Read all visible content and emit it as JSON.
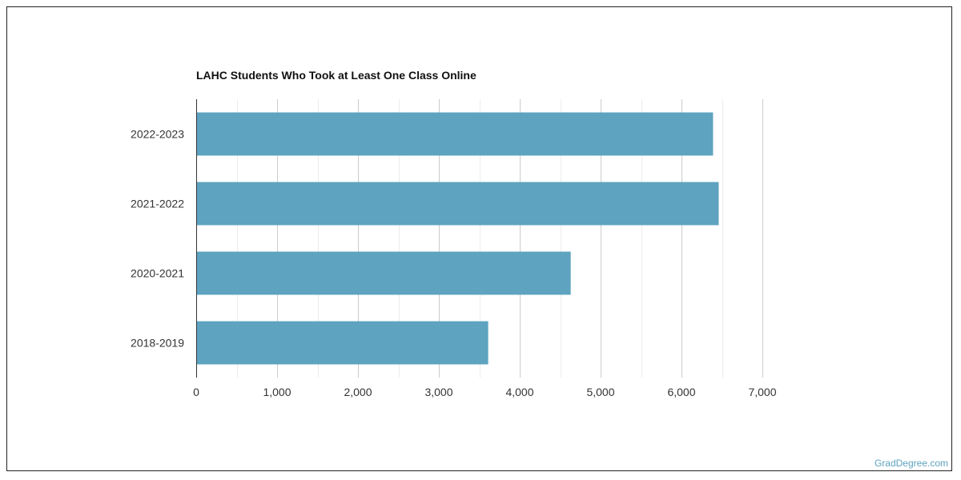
{
  "chart_data": {
    "type": "bar",
    "orientation": "horizontal",
    "title": "LAHC Students Who Took at Least One Class Online",
    "categories": [
      "2022-2023",
      "2021-2022",
      "2020-2021",
      "2018-2019"
    ],
    "values": [
      6390,
      6460,
      4630,
      3610
    ],
    "xlabel": "",
    "ylabel": "",
    "xlim": [
      0,
      7000
    ],
    "xticks": [
      0,
      1000,
      2000,
      3000,
      4000,
      5000,
      6000,
      7000
    ],
    "xtick_labels": [
      "0",
      "1,000",
      "2,000",
      "3,000",
      "4,000",
      "5,000",
      "6,000",
      "7,000"
    ],
    "grid": true,
    "bar_color": "#5ea3c0"
  },
  "watermark": "GradDegree.com"
}
